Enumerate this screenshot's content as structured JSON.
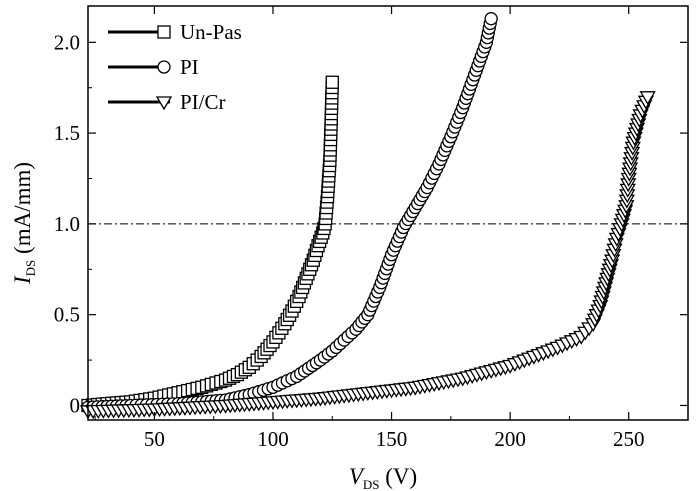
{
  "chart_data": {
    "type": "line",
    "xlabel": "V",
    "xlabel_subscript": "DS",
    "xlabel_unit": "(V)",
    "ylabel": "I",
    "ylabel_subscript": "DS",
    "ylabel_unit": "(mA/mm)",
    "xlim": [
      22,
      275
    ],
    "ylim": [
      -0.08,
      2.2
    ],
    "x_ticks": [
      50,
      100,
      150,
      200,
      250
    ],
    "x_tick_labels": [
      "50",
      "100",
      "150",
      "200",
      "250"
    ],
    "y_ticks": [
      0,
      0.5,
      1.0,
      1.5,
      2.0
    ],
    "y_tick_labels": [
      "0",
      "0.5",
      "1.0",
      "1.5",
      "2.0"
    ],
    "grid": false,
    "legend_position": "top-left",
    "reference_line": {
      "y": 1.0,
      "style": "dash-dot"
    },
    "series": [
      {
        "name": "Un-Pas",
        "marker": "square",
        "x": [
          22,
          30,
          40,
          50,
          60,
          70,
          80,
          85,
          90,
          95,
          100,
          105,
          108,
          111,
          114,
          117,
          119,
          121,
          122,
          123,
          124,
          124.5,
          125
        ],
        "y": [
          0.0,
          0.01,
          0.02,
          0.04,
          0.07,
          0.1,
          0.14,
          0.17,
          0.21,
          0.27,
          0.35,
          0.45,
          0.52,
          0.6,
          0.7,
          0.8,
          0.88,
          0.95,
          1.0,
          1.15,
          1.35,
          1.55,
          1.78
        ]
      },
      {
        "name": "PI",
        "marker": "circle",
        "x": [
          22,
          40,
          60,
          80,
          90,
          100,
          110,
          120,
          125,
          130,
          135,
          140,
          145,
          150,
          155,
          160,
          165,
          170,
          175,
          180,
          185,
          190,
          192
        ],
        "y": [
          -0.01,
          0.0,
          0.01,
          0.03,
          0.06,
          0.1,
          0.16,
          0.25,
          0.3,
          0.36,
          0.42,
          0.5,
          0.65,
          0.83,
          0.98,
          1.09,
          1.2,
          1.33,
          1.48,
          1.64,
          1.82,
          2.0,
          2.13
        ]
      },
      {
        "name": "PI/Cr",
        "marker": "triangle-down",
        "x": [
          22,
          50,
          80,
          100,
          120,
          140,
          160,
          180,
          200,
          210,
          220,
          230,
          235,
          238,
          240,
          243,
          245,
          247,
          249,
          250,
          252,
          255,
          258
        ],
        "y": [
          -0.03,
          -0.02,
          0.0,
          0.02,
          0.04,
          0.07,
          0.1,
          0.15,
          0.22,
          0.27,
          0.32,
          0.38,
          0.45,
          0.55,
          0.65,
          0.8,
          0.92,
          1.0,
          1.1,
          1.25,
          1.45,
          1.6,
          1.7
        ]
      }
    ]
  }
}
